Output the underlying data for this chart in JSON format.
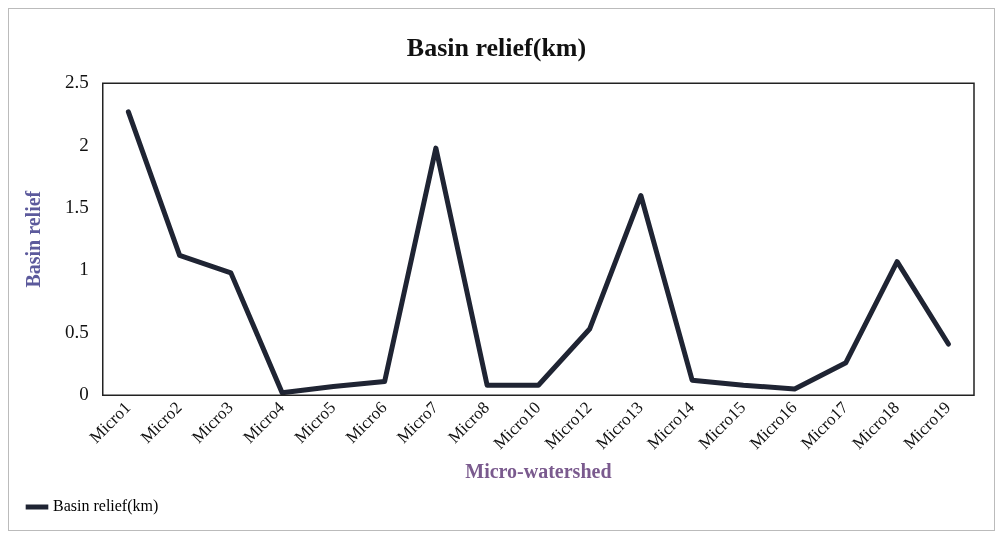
{
  "chart_data": {
    "type": "line",
    "title": "Basin relief(km)",
    "xlabel": "Micro-watershed",
    "ylabel": "Basin relief",
    "categories": [
      "Micro1",
      "Micro2",
      "Micro3",
      "Micro4",
      "Micro5",
      "Micro6",
      "Micro7",
      "Micro8",
      "Micro10",
      "Micro12",
      "Micro13",
      "Micro14",
      "Micro15",
      "Micro16",
      "Micro17",
      "Micro18",
      "Micro19"
    ],
    "series": [
      {
        "name": "Basin relief(km)",
        "color": "#1f2433",
        "values": [
          2.27,
          1.12,
          0.98,
          0.02,
          0.07,
          0.11,
          1.98,
          0.08,
          0.08,
          0.53,
          1.6,
          0.12,
          0.08,
          0.05,
          0.26,
          1.07,
          0.41
        ]
      }
    ],
    "ylim": [
      0,
      2.5
    ],
    "yticks": [
      0,
      0.5,
      1,
      1.5,
      2,
      2.5
    ],
    "grid": false,
    "legend": "bottom left",
    "marker": "none",
    "line_style": "solid"
  }
}
